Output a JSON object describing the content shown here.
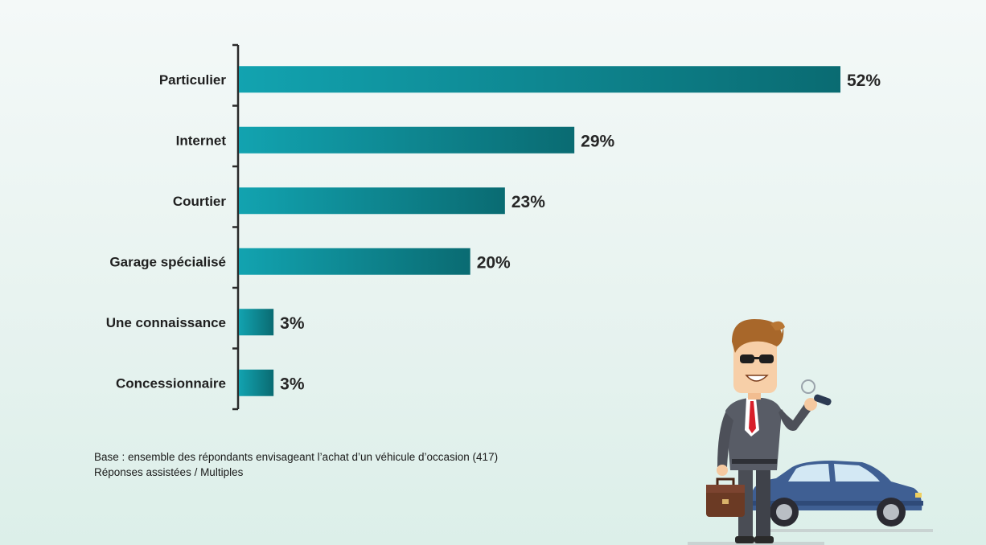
{
  "chart_data": {
    "type": "bar",
    "orientation": "horizontal",
    "categories": [
      "Particulier",
      "Internet",
      "Courtier",
      "Garage spécialisé",
      "Une connaissance",
      "Concessionnaire"
    ],
    "values": [
      52,
      29,
      23,
      20,
      3,
      3
    ],
    "value_labels": [
      "52%",
      "29%",
      "23%",
      "20%",
      "3%",
      "3%"
    ],
    "unit": "%",
    "xlim": [
      0,
      52
    ],
    "grid": false,
    "legend": "none",
    "colors": {
      "bar_start": "#12a3b0",
      "bar_end": "#0a6b72",
      "axis": "#2a2a2a"
    }
  },
  "footnote": {
    "base": "Base : ensemble des répondants envisageant l’achat d’un véhicule d’occasion (417)",
    "type": "Réponses assistées / Multiples"
  }
}
